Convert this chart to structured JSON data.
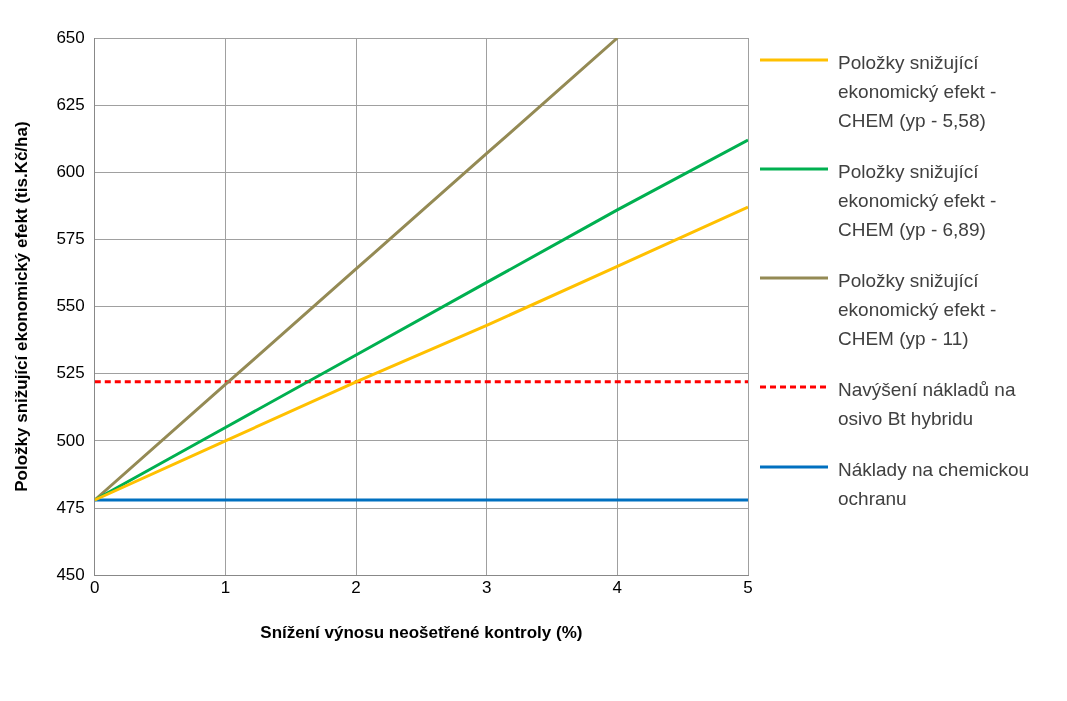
{
  "chart_data": {
    "type": "line",
    "xlabel": "Snížení výnosu neošetřené kontroly (%)",
    "ylabel": "Položky snižující ekonomický efekt (tis.Kč/ha)",
    "x": [
      0,
      1,
      2,
      3,
      4,
      5
    ],
    "xlim": [
      0,
      5
    ],
    "xticks": [
      0,
      1,
      2,
      3,
      4,
      5
    ],
    "ylim": [
      450,
      650
    ],
    "yticks": [
      450,
      475,
      500,
      525,
      550,
      575,
      600,
      625,
      650
    ],
    "grid": true,
    "legend": "right",
    "marker": "none",
    "series": [
      {
        "name": "Položky snižující ekonomický efekt - CHEM (yp - 5,58)",
        "color": "#ffc000",
        "values": [
          478,
          500,
          522,
          543,
          565,
          587
        ]
      },
      {
        "name": "Položky snižující ekonomický efekt - CHEM (yp - 6,89)",
        "color": "#00b050",
        "values": [
          478,
          505,
          532,
          559,
          586,
          612
        ]
      },
      {
        "name": "Položky snižující ekonomický efekt - CHEM (yp - 11)",
        "color": "#948a54",
        "values": [
          478,
          521,
          564,
          607,
          650,
          null
        ]
      },
      {
        "name": "Navýšení nákladů na osivo Bt hybridu",
        "color": "#ff0000",
        "line_style": "dashed",
        "values": [
          522,
          522,
          522,
          522,
          522,
          522
        ]
      },
      {
        "name": "Náklady na chemickou ochranu",
        "color": "#0070c0",
        "values": [
          478,
          478,
          478,
          478,
          478,
          478
        ]
      }
    ]
  }
}
